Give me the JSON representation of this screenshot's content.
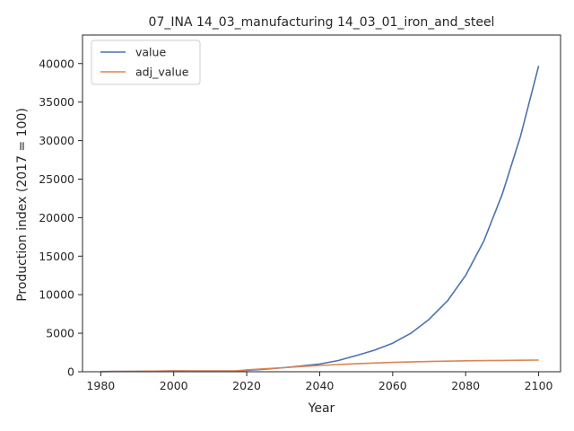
{
  "chart_data": {
    "type": "line",
    "title": "07_INA 14_03_manufacturing 14_03_01_iron_and_steel",
    "xlabel": "Year",
    "ylabel": "Production index (2017 = 100)",
    "xlim": [
      1975,
      2106
    ],
    "ylim": [
      0,
      43700
    ],
    "xticks": [
      1980,
      2000,
      2020,
      2040,
      2060,
      2080,
      2100
    ],
    "yticks": [
      0,
      5000,
      10000,
      15000,
      20000,
      25000,
      30000,
      35000,
      40000
    ],
    "legend_position": "top-left",
    "grid": false,
    "series": [
      {
        "name": "value",
        "color": "#4c72b0",
        "x": [
          1980,
          1985,
          1990,
          1995,
          2000,
          2005,
          2010,
          2015,
          2017,
          2020,
          2025,
          2030,
          2035,
          2040,
          2045,
          2050,
          2055,
          2060,
          2065,
          2070,
          2075,
          2080,
          2085,
          2090,
          2095,
          2100
        ],
        "y": [
          20,
          35,
          55,
          80,
          100,
          95,
          90,
          95,
          100,
          180,
          330,
          520,
          750,
          1000,
          1450,
          2100,
          2800,
          3700,
          5000,
          6800,
          9200,
          12500,
          17000,
          23000,
          30500,
          39700
        ]
      },
      {
        "name": "adj_value",
        "color": "#dd8452",
        "x": [
          1980,
          1985,
          1990,
          1995,
          2000,
          2005,
          2010,
          2015,
          2017,
          2020,
          2025,
          2030,
          2035,
          2040,
          2045,
          2050,
          2055,
          2060,
          2065,
          2070,
          2075,
          2080,
          2085,
          2090,
          2095,
          2100
        ],
        "y": [
          20,
          35,
          55,
          80,
          100,
          95,
          90,
          95,
          100,
          250,
          380,
          520,
          680,
          820,
          930,
          1040,
          1130,
          1210,
          1270,
          1330,
          1380,
          1420,
          1450,
          1470,
          1490,
          1510
        ]
      }
    ]
  }
}
